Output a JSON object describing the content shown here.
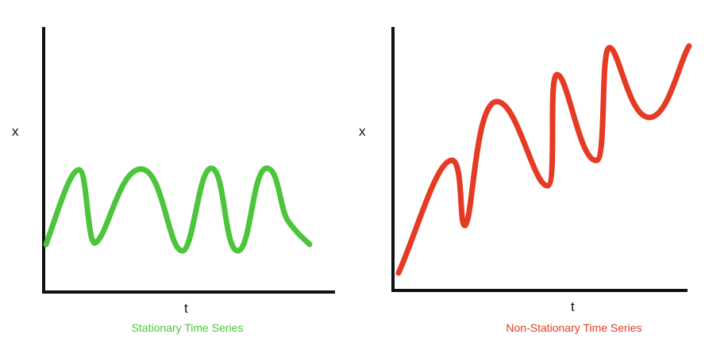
{
  "panels": [
    {
      "y_label": "x",
      "x_label": "t",
      "caption": "Stationary Time Series",
      "line_color": "#4cc43b",
      "caption_color": "#4cc43b"
    },
    {
      "y_label": "x",
      "x_label": "t",
      "caption": "Non-Stationary Time Series",
      "line_color": "#e53a23",
      "caption_color": "#e53a23"
    }
  ]
}
